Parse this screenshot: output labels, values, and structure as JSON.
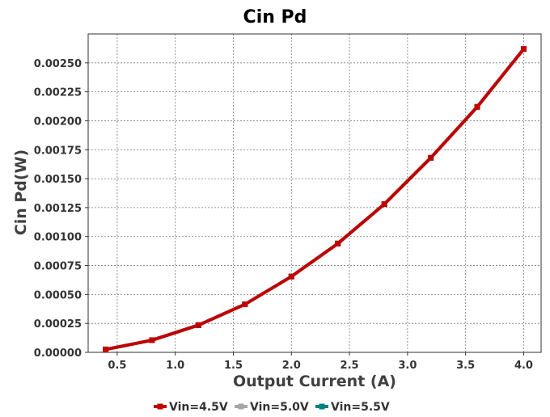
{
  "chart_data": {
    "type": "line",
    "title": "Cin Pd",
    "xlabel": "Output Current (A)",
    "ylabel": "Cin Pd(W)",
    "xlim": [
      0.25,
      4.15
    ],
    "ylim": [
      0.0,
      0.00275
    ],
    "x_ticks": [
      "0.5",
      "1.0",
      "1.5",
      "2.0",
      "2.5",
      "3.0",
      "3.5",
      "4.0"
    ],
    "y_ticks": [
      "0.00000",
      "0.00025",
      "0.00050",
      "0.00075",
      "0.00100",
      "0.00125",
      "0.00150",
      "0.00175",
      "0.00200",
      "0.00225",
      "0.00250"
    ],
    "grid": true,
    "legend_position": "bottom",
    "x": [
      0.4,
      0.8,
      1.2,
      1.6,
      2.0,
      2.4,
      2.8,
      3.2,
      3.6,
      4.0
    ],
    "series": [
      {
        "name": "Vin=4.5V",
        "color": "#c00000",
        "values": [
          2.5e-05,
          0.000105,
          0.000235,
          0.000415,
          0.000655,
          0.00094,
          0.00128,
          0.00168,
          0.00212,
          0.00262
        ]
      },
      {
        "name": "Vin=5.0V",
        "color": "#a6a6a6",
        "values": [
          2.5e-05,
          0.000105,
          0.000235,
          0.000415,
          0.000655,
          0.00094,
          0.00128,
          0.00168,
          0.00212,
          0.00262
        ]
      },
      {
        "name": "Vin=5.5V",
        "color": "#008080",
        "values": [
          2.5e-05,
          0.000105,
          0.000235,
          0.000415,
          0.000655,
          0.00094,
          0.00128,
          0.00168,
          0.00212,
          0.00262
        ]
      }
    ]
  }
}
